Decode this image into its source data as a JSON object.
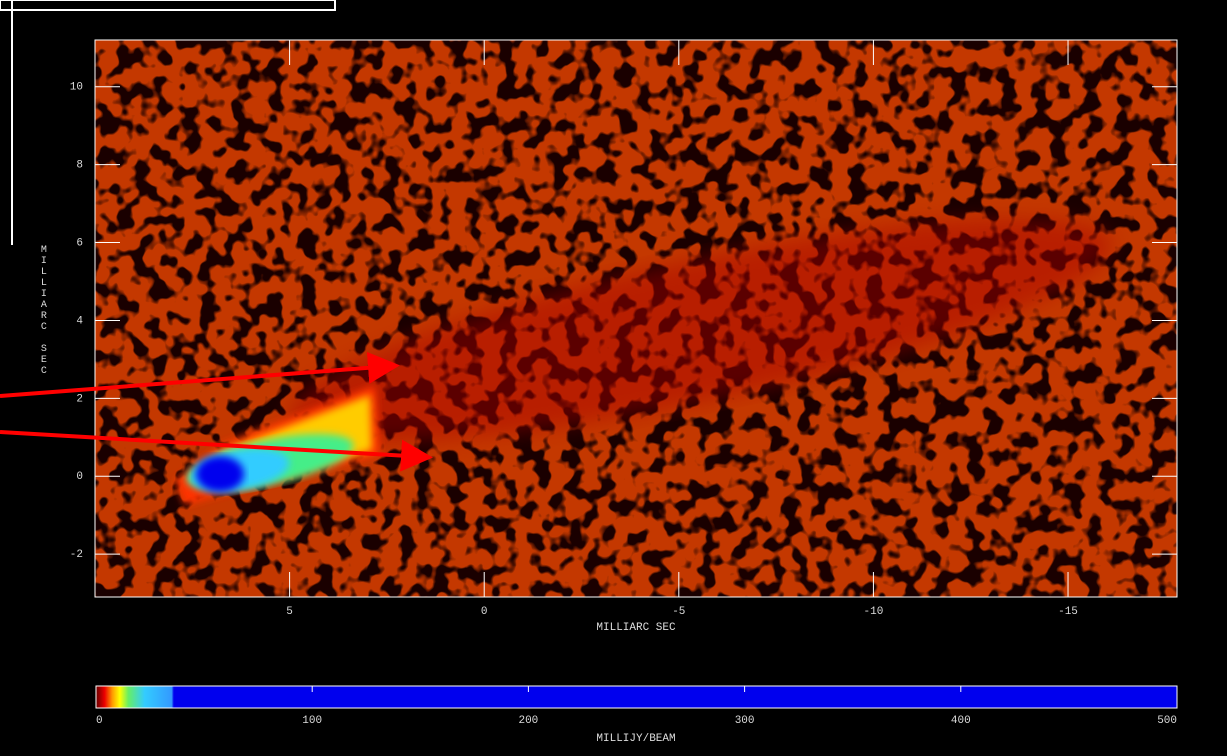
{
  "chart_data": {
    "type": "image",
    "xlabel": "MILLIARC SEC",
    "ylabel": "MILLIARC SEC",
    "xlim": [
      10,
      -17.8
    ],
    "xticks": [
      5,
      0,
      -5,
      -10,
      -15
    ],
    "ylim": [
      -3.1,
      11.2
    ],
    "yticks": [
      -2,
      0,
      2,
      4,
      6,
      8,
      10
    ],
    "colorbar": {
      "label": "MILLIJY/BEAM",
      "lim": [
        0,
        500
      ],
      "ticks": [
        0,
        100,
        200,
        300,
        400,
        500
      ]
    }
  }
}
